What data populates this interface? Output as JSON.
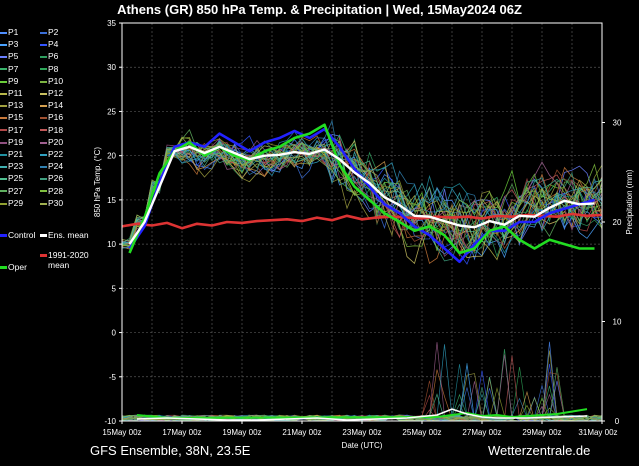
{
  "header": {
    "title": "Athens  (GR)  850 hPa Temp. & Precipitation | Wed, 15May2024 06Z"
  },
  "footer": {
    "left": "GFS Ensemble, 38N, 23.5E",
    "right": "Wetterzentrale.de"
  },
  "legend": {
    "members": [
      "P1",
      "P2",
      "P3",
      "P4",
      "P5",
      "P6",
      "P7",
      "P8",
      "P9",
      "P10",
      "P11",
      "P12",
      "P13",
      "P14",
      "P15",
      "P16",
      "P17",
      "P18",
      "P19",
      "P20",
      "P21",
      "P22",
      "P23",
      "P24",
      "P25",
      "P26",
      "P27",
      "P28",
      "P29",
      "P30"
    ],
    "member_colors": [
      "#4f8fff",
      "#3a6fd8",
      "#4aa3ff",
      "#3355ff",
      "#6a7fff",
      "#2e9e5e",
      "#39b36b",
      "#2fa85a",
      "#6acd3a",
      "#7cb342",
      "#b8b84a",
      "#c9c060",
      "#a0a040",
      "#d4a050",
      "#c8783a",
      "#a05030",
      "#b04848",
      "#c05858",
      "#905080",
      "#a06090",
      "#2090a0",
      "#30a0c0",
      "#40b0b0",
      "#3080b0",
      "#50c090",
      "#40a080",
      "#60b060",
      "#80c040",
      "#90a030",
      "#a0b050"
    ],
    "control": "Control",
    "ens_mean": "Ens. mean",
    "climate_mean_line1": "1991-2020",
    "climate_mean_line2": "mean",
    "oper": "Oper"
  },
  "colors": {
    "oper": "#22dd22",
    "control": "#2222ff",
    "ens_mean": "#ffffff",
    "climate_mean": "#dd3333",
    "grid": "#555555",
    "axis": "#ffffff"
  },
  "chart_data": {
    "type": "line",
    "title": "Athens  (GR)  850 hPa Temp. & Precipitation | Wed, 15May2024 06Z",
    "xlabel": "Date (UTC)",
    "ylabel": "850 hPa Temp. (°C)",
    "y2label": "Precipitation (mm)",
    "x_unit": "days since 15May 00z",
    "xlim": [
      0,
      16
    ],
    "ylim": [
      -10,
      35
    ],
    "y2lim": [
      0,
      40
    ],
    "y_ticks": [
      -10,
      -5,
      0,
      5,
      10,
      15,
      20,
      25,
      30,
      35
    ],
    "y2_ticks": [
      0,
      10,
      20,
      30
    ],
    "x_ticks": [
      0,
      2,
      4,
      6,
      8,
      10,
      12,
      14,
      16
    ],
    "x_tick_labels": [
      "15May 00z",
      "17May 00z",
      "19May 00z",
      "21May 00z",
      "23May 00z",
      "25May 00z",
      "27May 00z",
      "29May 00z",
      "31May 00z"
    ],
    "grid": true,
    "series": [
      {
        "name": "Ens. mean",
        "x": [
          0.25,
          0.75,
          1.25,
          1.75,
          2.25,
          2.75,
          3.25,
          3.75,
          4.25,
          4.75,
          5.25,
          5.75,
          6.25,
          6.75,
          7.25,
          7.75,
          8.25,
          8.75,
          9.25,
          9.75,
          10.25,
          10.75,
          11.25,
          11.75,
          12.25,
          12.75,
          13.25,
          13.75,
          14.25,
          14.75,
          15.25,
          15.75
        ],
        "values": [
          10,
          12.5,
          16.5,
          20.5,
          21,
          20.3,
          21,
          20.3,
          19.6,
          20,
          20.1,
          20.4,
          20.2,
          20.7,
          19.6,
          18.1,
          16.9,
          15.3,
          14.4,
          13.2,
          13.1,
          12.6,
          12.1,
          11.9,
          12.6,
          12.2,
          13.2,
          13.1,
          14.1,
          14.9,
          14.5,
          14.6
        ]
      },
      {
        "name": "Control",
        "x": [
          0.25,
          0.75,
          1.25,
          1.75,
          2.25,
          2.75,
          3.25,
          3.75,
          4.25,
          4.75,
          5.25,
          5.75,
          6.25,
          6.75,
          7.25,
          7.75,
          8.25,
          8.75,
          9.25,
          9.75,
          10.25,
          10.75,
          11.25,
          11.75,
          12.25,
          12.75,
          13.25,
          13.75,
          14.25,
          14.75,
          15.25,
          15.75
        ],
        "values": [
          9.5,
          12,
          17,
          21,
          21.5,
          21,
          22.5,
          21.5,
          20.5,
          21.5,
          22,
          22.8,
          22,
          23,
          21,
          18.5,
          16.5,
          14.5,
          13.5,
          12,
          11,
          9.5,
          8,
          10,
          11.5,
          11.5,
          12.5,
          12.5,
          13.5,
          14,
          14.5,
          15
        ]
      },
      {
        "name": "Oper",
        "x": [
          0.25,
          0.75,
          1.25,
          1.75,
          2.25,
          2.75,
          3.25,
          3.75,
          4.25,
          4.75,
          5.25,
          5.75,
          6.25,
          6.75,
          7.25,
          7.75,
          8.25,
          8.75,
          9.25,
          9.75,
          10.25,
          10.75,
          11.25,
          11.75,
          12.25,
          12.75,
          13.25,
          13.75,
          14.25,
          14.75,
          15.25,
          15.75
        ],
        "values": [
          9,
          13,
          18,
          20.5,
          21.5,
          20,
          21,
          20,
          19.5,
          20.5,
          21,
          22,
          22.5,
          23.5,
          19,
          16.5,
          15,
          13.5,
          12.5,
          11.5,
          12,
          11,
          9,
          9.5,
          11.5,
          12,
          10.5,
          9.5,
          10.5,
          10,
          9.5,
          9.5
        ]
      },
      {
        "name": "1991-2020 mean",
        "x": [
          0,
          0.5,
          1,
          1.5,
          2,
          2.5,
          3,
          3.5,
          4,
          4.5,
          5,
          5.5,
          6,
          6.5,
          7,
          7.5,
          8,
          8.5,
          9,
          9.5,
          10,
          10.5,
          11,
          11.5,
          12,
          12.5,
          13,
          13.5,
          14,
          14.5,
          15,
          15.5,
          16
        ],
        "values": [
          12,
          12.3,
          12.1,
          12.4,
          11.8,
          12.3,
          12.1,
          12.5,
          12.4,
          12.6,
          12.7,
          12.8,
          12.6,
          13,
          12.7,
          13.2,
          12.8,
          13,
          13.1,
          13,
          12.9,
          13.1,
          13,
          13.1,
          12.9,
          13.2,
          13.1,
          13.3,
          13.2,
          13.1,
          13.4,
          13.2,
          13.3
        ]
      },
      {
        "name": "Oper precipitation (mm)",
        "axis": "y2",
        "x": [
          0.5,
          1.5,
          10.5,
          11.5,
          12,
          12.5,
          13,
          14.5,
          15.5
        ],
        "values": [
          0.6,
          0.3,
          0.4,
          0.8,
          0.5,
          0.6,
          0.4,
          0.7,
          1.2
        ]
      },
      {
        "name": "Ens. mean precipitation (mm)",
        "axis": "y2",
        "x": [
          0.5,
          1.5,
          2.5,
          3.5,
          4.5,
          5.5,
          6.5,
          7.5,
          8.5,
          9.5,
          10.5,
          11,
          11.5,
          12,
          12.5,
          13.5,
          14.5,
          15.5
        ],
        "values": [
          0.2,
          0.3,
          0.2,
          0.1,
          0.1,
          0.2,
          0.3,
          0.1,
          0.2,
          0.3,
          0.6,
          1.2,
          0.7,
          0.4,
          0.3,
          0.3,
          0.4,
          0.5
        ]
      }
    ]
  }
}
